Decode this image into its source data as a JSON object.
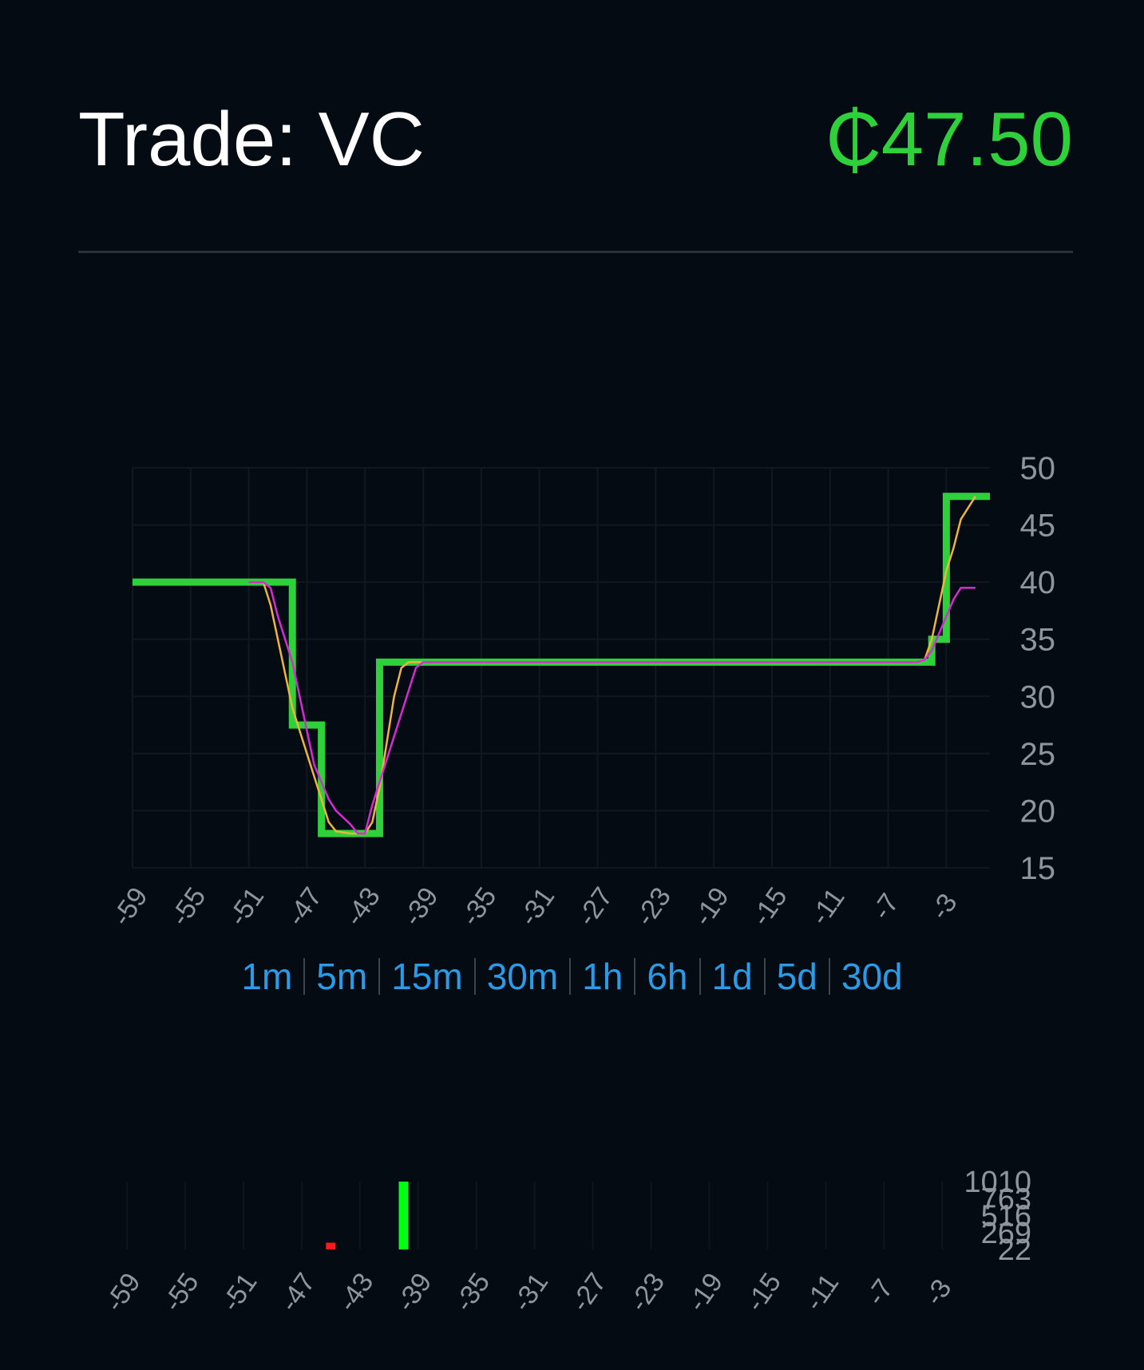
{
  "header": {
    "title": "Trade: VC",
    "price": "₵47.50"
  },
  "colors": {
    "background": "#050b12",
    "price_line": "#2fd13b",
    "ma_fast": "#f0b43c",
    "ma_slow": "#d62bd2",
    "tab_text": "#2a9be6",
    "volume_up": "#00ff12",
    "volume_down": "#ff1a1a"
  },
  "timeframes": [
    "1m",
    "5m",
    "15m",
    "30m",
    "1h",
    "6h",
    "1d",
    "5d",
    "30d"
  ],
  "chart_data": [
    {
      "type": "line",
      "ylim": [
        15,
        50
      ],
      "xlim": [
        -59,
        0
      ],
      "grid": true,
      "x_ticks": [
        "-59",
        "-55",
        "-51",
        "-47",
        "-43",
        "-39",
        "-35",
        "-31",
        "-27",
        "-23",
        "-19",
        "-15",
        "-11",
        "-7",
        "-3"
      ],
      "y_ticks": [
        "50",
        "45",
        "40",
        "35",
        "30",
        "25",
        "20",
        "15"
      ],
      "series": [
        {
          "key": "price",
          "style": "step",
          "x": [
            -59,
            -50,
            -49,
            -48,
            -47,
            -46,
            -45,
            -44,
            -43,
            -42,
            -41,
            -40,
            -39,
            -38,
            -36,
            -30,
            -20,
            -10,
            -5,
            -4,
            -3,
            -2,
            -1,
            0
          ],
          "values": [
            40,
            40,
            40,
            27.5,
            27.5,
            18,
            18,
            18,
            18,
            33,
            33,
            33,
            33,
            33,
            33,
            33,
            33,
            33,
            33,
            35,
            47.5,
            47.5,
            47.5,
            47.5
          ]
        },
        {
          "key": "ma_fast",
          "style": "line",
          "x": [
            -51,
            -50,
            -49.5,
            -49,
            -48.5,
            -48,
            -47.5,
            -47,
            -46.5,
            -46,
            -45.5,
            -45,
            -44,
            -43.5,
            -43,
            -42.5,
            -42,
            -41.5,
            -41,
            -40.5,
            -40,
            -39,
            -38,
            -36,
            -30,
            -20,
            -10,
            -5,
            -4.5,
            -4,
            -3.5,
            -3,
            -2.5,
            -2,
            -1
          ],
          "values": [
            40,
            40,
            38,
            35,
            32,
            29,
            27,
            25,
            23,
            21,
            19,
            18.2,
            18,
            18,
            18,
            19,
            22,
            26,
            30,
            32.5,
            33,
            33,
            33,
            33,
            33,
            33,
            33,
            33,
            33.2,
            35,
            38,
            41,
            43,
            45.5,
            47.5
          ]
        },
        {
          "key": "ma_slow",
          "style": "line",
          "x": [
            -51,
            -50,
            -49.5,
            -49,
            -48.5,
            -48,
            -47.5,
            -47,
            -46.5,
            -46,
            -45.5,
            -45,
            -44,
            -43.5,
            -43,
            -42.5,
            -42,
            -41.5,
            -41,
            -40.5,
            -40,
            -39.5,
            -39,
            -38.5,
            -38,
            -37,
            -36,
            -30,
            -20,
            -10,
            -5,
            -4.5,
            -4,
            -3.5,
            -3,
            -2.5,
            -2,
            -1
          ],
          "values": [
            40,
            40,
            39.5,
            37,
            35,
            33,
            30,
            27,
            24,
            22.5,
            21,
            20,
            18.8,
            18,
            18,
            20.5,
            22.5,
            24.5,
            26.5,
            28.5,
            30.5,
            32.5,
            33,
            33,
            33,
            33,
            33,
            33,
            33,
            33,
            33,
            33.2,
            34,
            35.5,
            37,
            38.5,
            39.5,
            39.5
          ]
        }
      ]
    },
    {
      "type": "bar",
      "xlim": [
        -59,
        0
      ],
      "ylim": [
        22,
        1010
      ],
      "x_ticks": [
        "-59",
        "-55",
        "-51",
        "-47",
        "-43",
        "-39",
        "-35",
        "-31",
        "-27",
        "-23",
        "-19",
        "-15",
        "-11",
        "-7",
        "-3"
      ],
      "y_ticks": [
        "1010",
        "763",
        "516",
        "269",
        "22"
      ],
      "series": [
        {
          "name": "",
          "x": [
            -45,
            -40
          ],
          "values": [
            120,
            1010
          ],
          "direction": [
            "down",
            "up"
          ]
        }
      ]
    }
  ]
}
